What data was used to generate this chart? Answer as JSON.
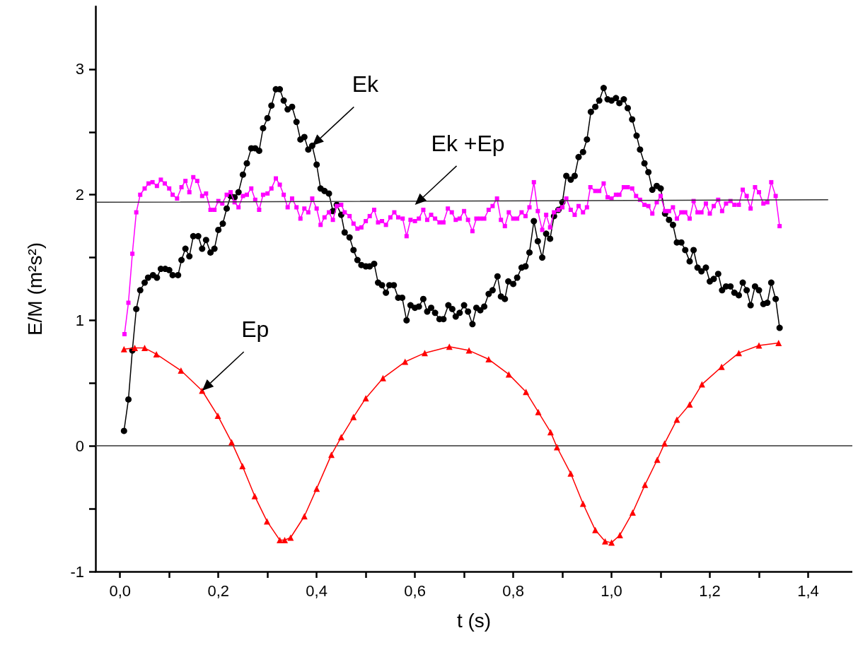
{
  "chart_data": {
    "type": "line",
    "xlabel": "t (s)",
    "ylabel": "E/M (m²s²)",
    "xlim": [
      -0.05,
      1.49
    ],
    "xticks": [
      {
        "value": 0,
        "label": "0,0"
      },
      {
        "value": 0.1,
        "label": null
      },
      {
        "value": 0.2,
        "label": "0,2"
      },
      {
        "value": 0.3,
        "label": null
      },
      {
        "value": 0.4,
        "label": "0,4"
      },
      {
        "value": 0.5,
        "label": null
      },
      {
        "value": 0.6,
        "label": "0,6"
      },
      {
        "value": 0.7,
        "label": null
      },
      {
        "value": 0.8,
        "label": "0,8"
      },
      {
        "value": 0.9,
        "label": null
      },
      {
        "value": 1.0,
        "label": "1,0"
      },
      {
        "value": 1.1,
        "label": null
      },
      {
        "value": 1.2,
        "label": "1,2"
      },
      {
        "value": 1.3,
        "label": null
      },
      {
        "value": 1.4,
        "label": "1,4"
      }
    ],
    "ylim": [
      -1,
      3.5
    ],
    "yticks": [
      -1,
      {
        "value": -0.5,
        "label": null
      },
      0,
      {
        "value": 0.5,
        "label": null
      },
      1,
      {
        "value": 1.5,
        "label": null
      },
      2,
      {
        "value": 2.5,
        "label": null
      },
      3
    ],
    "ref_lines": [
      {
        "axis": "y",
        "value": 0,
        "color": "#333333"
      }
    ],
    "annotations": [
      {
        "text": "Ek",
        "x": 0.391,
        "y": 2.39
      },
      {
        "text": "Ek +Ep",
        "x": 0.6,
        "y": 1.92
      },
      {
        "text": "Ep",
        "x": 0.167,
        "y": 0.44
      }
    ],
    "series": [
      {
        "color": "#000000",
        "marker": "circle",
        "x": [
          0.008,
          0.017,
          0.025,
          0.033,
          0.041,
          0.05,
          0.057,
          0.067,
          0.075,
          0.083,
          0.092,
          0.1,
          0.107,
          0.118,
          0.125,
          0.133,
          0.141,
          0.149,
          0.159,
          0.167,
          0.175,
          0.184,
          0.192,
          0.2,
          0.209,
          0.217,
          0.225,
          0.233,
          0.241,
          0.25,
          0.258,
          0.267,
          0.275,
          0.283,
          0.291,
          0.3,
          0.308,
          0.317,
          0.325,
          0.333,
          0.341,
          0.35,
          0.359,
          0.367,
          0.375,
          0.383,
          0.391,
          0.4,
          0.408,
          0.416,
          0.425,
          0.433,
          0.441,
          0.45,
          0.457,
          0.467,
          0.475,
          0.483,
          0.491,
          0.5,
          0.508,
          0.517,
          0.525,
          0.533,
          0.541,
          0.548,
          0.557,
          0.566,
          0.574,
          0.583,
          0.591,
          0.6,
          0.608,
          0.617,
          0.625,
          0.633,
          0.641,
          0.65,
          0.658,
          0.668,
          0.676,
          0.683,
          0.691,
          0.7,
          0.708,
          0.717,
          0.725,
          0.733,
          0.741,
          0.75,
          0.758,
          0.768,
          0.775,
          0.783,
          0.79,
          0.8,
          0.808,
          0.817,
          0.825,
          0.833,
          0.842,
          0.85,
          0.859,
          0.867,
          0.875,
          0.883,
          0.892,
          0.9,
          0.908,
          0.917,
          0.925,
          0.933,
          0.942,
          0.95,
          0.958,
          0.967,
          0.975,
          0.984,
          0.992,
          1.0,
          1.009,
          1.016,
          1.025,
          1.033,
          1.042,
          1.051,
          1.058,
          1.067,
          1.075,
          1.083,
          1.092,
          1.1,
          1.109,
          1.117,
          1.125,
          1.133,
          1.142,
          1.15,
          1.159,
          1.167,
          1.175,
          1.183,
          1.192,
          1.2,
          1.208,
          1.217,
          1.225,
          1.233,
          1.242,
          1.25,
          1.259,
          1.267,
          1.275,
          1.283,
          1.292,
          1.3,
          1.309,
          1.317,
          1.325,
          1.334,
          1.342
        ],
        "values": [
          0.12,
          0.37,
          0.76,
          1.09,
          1.24,
          1.3,
          1.34,
          1.36,
          1.34,
          1.41,
          1.41,
          1.4,
          1.36,
          1.36,
          1.48,
          1.57,
          1.51,
          1.67,
          1.67,
          1.57,
          1.64,
          1.54,
          1.57,
          1.72,
          1.77,
          1.89,
          1.99,
          1.98,
          2.02,
          2.16,
          2.25,
          2.37,
          2.37,
          2.35,
          2.53,
          2.61,
          2.71,
          2.84,
          2.84,
          2.75,
          2.68,
          2.7,
          2.58,
          2.44,
          2.46,
          2.36,
          2.39,
          2.24,
          2.05,
          2.03,
          2.01,
          1.87,
          1.92,
          1.84,
          1.7,
          1.66,
          1.56,
          1.48,
          1.44,
          1.43,
          1.43,
          1.45,
          1.3,
          1.28,
          1.22,
          1.28,
          1.28,
          1.18,
          1.18,
          1.0,
          1.12,
          1.1,
          1.11,
          1.17,
          1.07,
          1.1,
          1.06,
          1.01,
          1.01,
          1.12,
          1.09,
          1.03,
          1.06,
          1.12,
          1.07,
          0.97,
          1.1,
          1.08,
          1.11,
          1.21,
          1.24,
          1.35,
          1.19,
          1.17,
          1.31,
          1.29,
          1.34,
          1.42,
          1.43,
          1.54,
          1.79,
          1.63,
          1.5,
          1.69,
          1.65,
          1.83,
          1.88,
          1.94,
          2.15,
          2.12,
          2.15,
          2.3,
          2.34,
          2.44,
          2.66,
          2.7,
          2.75,
          2.85,
          2.76,
          2.75,
          2.77,
          2.73,
          2.76,
          2.69,
          2.6,
          2.47,
          2.36,
          2.25,
          2.18,
          2.04,
          2.07,
          2.05,
          1.85,
          1.8,
          1.76,
          1.62,
          1.62,
          1.56,
          1.47,
          1.56,
          1.42,
          1.39,
          1.42,
          1.31,
          1.33,
          1.37,
          1.24,
          1.27,
          1.27,
          1.22,
          1.2,
          1.3,
          1.24,
          1.12,
          1.27,
          1.24,
          1.13,
          1.14,
          1.3,
          1.17,
          0.94
        ]
      },
      {
        "color": "#ff00ff",
        "marker": "square",
        "x": [
          0.009,
          0.017,
          0.025,
          0.033,
          0.041,
          0.05,
          0.058,
          0.066,
          0.075,
          0.083,
          0.091,
          0.1,
          0.107,
          0.116,
          0.125,
          0.133,
          0.141,
          0.149,
          0.157,
          0.167,
          0.175,
          0.184,
          0.192,
          0.2,
          0.208,
          0.217,
          0.225,
          0.233,
          0.241,
          0.25,
          0.258,
          0.267,
          0.275,
          0.283,
          0.291,
          0.3,
          0.308,
          0.317,
          0.325,
          0.333,
          0.341,
          0.35,
          0.359,
          0.367,
          0.375,
          0.383,
          0.391,
          0.4,
          0.408,
          0.416,
          0.425,
          0.433,
          0.441,
          0.45,
          0.457,
          0.467,
          0.475,
          0.483,
          0.491,
          0.5,
          0.508,
          0.517,
          0.525,
          0.533,
          0.541,
          0.55,
          0.558,
          0.566,
          0.575,
          0.583,
          0.591,
          0.6,
          0.608,
          0.617,
          0.625,
          0.633,
          0.641,
          0.65,
          0.658,
          0.667,
          0.675,
          0.683,
          0.691,
          0.7,
          0.708,
          0.717,
          0.725,
          0.733,
          0.741,
          0.75,
          0.758,
          0.767,
          0.775,
          0.783,
          0.791,
          0.8,
          0.808,
          0.817,
          0.825,
          0.833,
          0.842,
          0.85,
          0.859,
          0.867,
          0.875,
          0.883,
          0.892,
          0.9,
          0.908,
          0.917,
          0.925,
          0.933,
          0.942,
          0.95,
          0.957,
          0.967,
          0.975,
          0.984,
          0.992,
          1.0,
          1.009,
          1.016,
          1.025,
          1.033,
          1.042,
          1.05,
          1.058,
          1.067,
          1.075,
          1.083,
          1.092,
          1.1,
          1.109,
          1.117,
          1.125,
          1.133,
          1.142,
          1.15,
          1.159,
          1.167,
          1.175,
          1.183,
          1.192,
          1.2,
          1.208,
          1.217,
          1.225,
          1.233,
          1.242,
          1.25,
          1.259,
          1.267,
          1.275,
          1.283,
          1.292,
          1.3,
          1.309,
          1.317,
          1.325,
          1.334,
          1.342
        ],
        "values": [
          0.89,
          1.14,
          1.53,
          1.86,
          2.0,
          2.05,
          2.09,
          2.1,
          2.07,
          2.12,
          2.09,
          2.05,
          2.0,
          1.97,
          2.06,
          2.11,
          2.02,
          2.14,
          2.11,
          1.99,
          2.01,
          1.88,
          1.88,
          1.95,
          1.93,
          2.0,
          2.02,
          1.94,
          1.9,
          1.99,
          2.0,
          2.05,
          1.96,
          1.88,
          2.0,
          2.01,
          2.05,
          2.13,
          2.08,
          2.0,
          1.9,
          1.97,
          1.9,
          1.81,
          1.89,
          1.86,
          1.97,
          1.89,
          1.76,
          1.82,
          1.86,
          1.8,
          1.91,
          1.92,
          1.86,
          1.83,
          1.77,
          1.73,
          1.74,
          1.79,
          1.83,
          1.88,
          1.78,
          1.79,
          1.76,
          1.82,
          1.86,
          1.82,
          1.81,
          1.67,
          1.8,
          1.79,
          1.81,
          1.88,
          1.8,
          1.84,
          1.81,
          1.78,
          1.78,
          1.89,
          1.86,
          1.8,
          1.81,
          1.87,
          1.8,
          1.71,
          1.81,
          1.81,
          1.81,
          1.88,
          1.91,
          1.97,
          1.8,
          1.75,
          1.86,
          1.81,
          1.81,
          1.86,
          1.83,
          1.9,
          2.1,
          1.87,
          1.72,
          1.84,
          1.74,
          1.86,
          1.88,
          1.9,
          1.97,
          1.88,
          1.84,
          1.91,
          1.86,
          1.9,
          2.06,
          2.03,
          2.03,
          2.09,
          1.98,
          1.97,
          2.0,
          2.0,
          2.06,
          2.06,
          2.05,
          1.99,
          1.96,
          1.92,
          1.91,
          1.85,
          1.94,
          1.99,
          1.87,
          1.87,
          1.9,
          1.81,
          1.86,
          1.86,
          1.81,
          1.95,
          1.86,
          1.86,
          1.93,
          1.85,
          1.91,
          1.96,
          1.87,
          1.93,
          1.95,
          1.92,
          1.92,
          2.04,
          1.99,
          1.89,
          2.06,
          2.02,
          1.93,
          1.94,
          2.1,
          1.99,
          1.75
        ]
      },
      {
        "color": "#ff0000",
        "marker": "triangle",
        "x": [
          0.008,
          0.03,
          0.05,
          0.074,
          0.124,
          0.167,
          0.199,
          0.227,
          0.249,
          0.274,
          0.299,
          0.325,
          0.335,
          0.347,
          0.375,
          0.4,
          0.43,
          0.45,
          0.475,
          0.5,
          0.535,
          0.58,
          0.62,
          0.67,
          0.71,
          0.75,
          0.791,
          0.826,
          0.851,
          0.876,
          0.889,
          0.917,
          0.942,
          0.967,
          0.987,
          1.0,
          1.017,
          1.043,
          1.068,
          1.093,
          1.108,
          1.133,
          1.159,
          1.184,
          1.224,
          1.259,
          1.3,
          1.34
        ],
        "values": [
          0.77,
          0.78,
          0.78,
          0.73,
          0.6,
          0.44,
          0.24,
          0.03,
          -0.16,
          -0.4,
          -0.6,
          -0.75,
          -0.75,
          -0.73,
          -0.56,
          -0.34,
          -0.07,
          0.07,
          0.23,
          0.38,
          0.54,
          0.67,
          0.74,
          0.79,
          0.76,
          0.69,
          0.57,
          0.43,
          0.27,
          0.11,
          -0.01,
          -0.22,
          -0.46,
          -0.67,
          -0.76,
          -0.77,
          -0.71,
          -0.53,
          -0.31,
          -0.11,
          0.02,
          0.21,
          0.33,
          0.49,
          0.63,
          0.74,
          0.8,
          0.82
        ]
      },
      {
        "color": "#333333",
        "marker": "none",
        "x": [
          -0.047,
          1.44
        ],
        "values": [
          1.94,
          1.96
        ]
      }
    ]
  }
}
